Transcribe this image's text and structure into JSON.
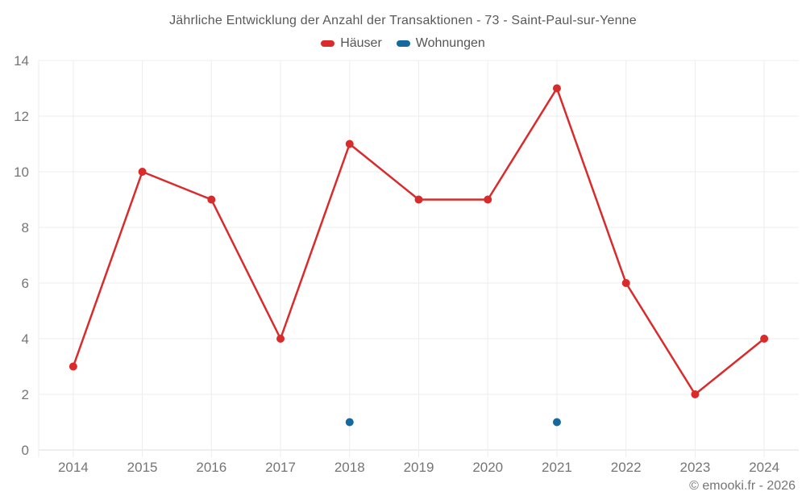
{
  "title": "Jährliche Entwicklung der Anzahl der Transaktionen - 73 - Saint-Paul-sur-Yenne",
  "legend": {
    "items": [
      {
        "label": "Häuser",
        "color": "#d92b2b"
      },
      {
        "label": "Wohnungen",
        "color": "#15699e"
      }
    ]
  },
  "footer": {
    "credit": "© emooki.fr - 2026"
  },
  "chart_data": {
    "type": "line",
    "title": "Jährliche Entwicklung der Anzahl der Transaktionen - 73 - Saint-Paul-sur-Yenne",
    "categories": [
      "2014",
      "2015",
      "2016",
      "2017",
      "2018",
      "2019",
      "2020",
      "2021",
      "2022",
      "2023",
      "2024"
    ],
    "series": [
      {
        "name": "Häuser",
        "color": "#d92b2b",
        "values": [
          3,
          10,
          9,
          4,
          11,
          9,
          9,
          13,
          6,
          2,
          4
        ]
      },
      {
        "name": "Wohnungen",
        "color": "#15699e",
        "values": [
          null,
          null,
          null,
          null,
          1,
          null,
          null,
          1,
          null,
          null,
          null
        ]
      }
    ],
    "xlabel": "",
    "ylabel": "",
    "ylim": [
      0,
      14
    ],
    "ytick_step": 2,
    "grid": true,
    "legend_position": "top",
    "colors": {
      "grid": "#ededed",
      "axis_line": "#dedede",
      "tick_label": "#757575"
    }
  }
}
